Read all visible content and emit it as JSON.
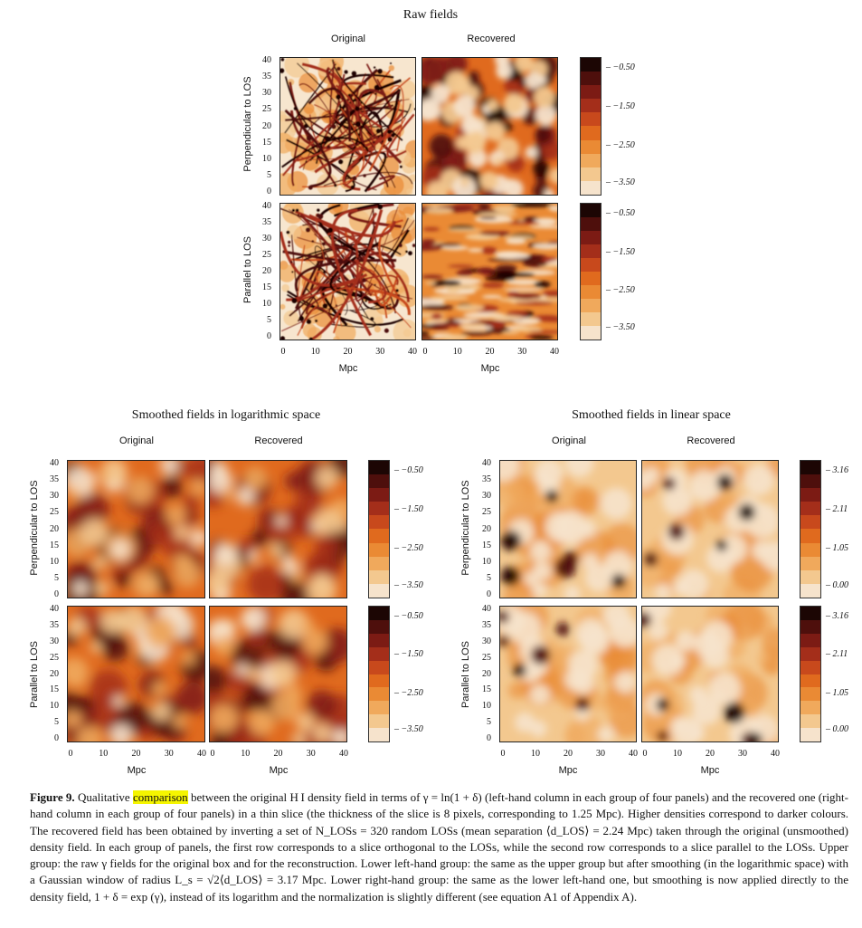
{
  "groups": {
    "raw": {
      "title": "Raw fields",
      "col_original": "Original",
      "col_recovered": "Recovered",
      "row1_label": "Perpendicular to LOS",
      "row2_label": "Parallel to LOS",
      "xlabel": "Mpc",
      "colorbar_ticks": [
        "−0.50",
        "−1.50",
        "−2.50",
        "−3.50"
      ]
    },
    "log": {
      "title": "Smoothed fields in logarithmic space",
      "col_original": "Original",
      "col_recovered": "Recovered",
      "row1_label": "Perpendicular to LOS",
      "row2_label": "Parallel to LOS",
      "xlabel": "Mpc",
      "colorbar_ticks": [
        "−0.50",
        "−1.50",
        "−2.50",
        "−3.50"
      ]
    },
    "lin": {
      "title": "Smoothed fields in linear space",
      "col_original": "Original",
      "col_recovered": "Recovered",
      "row1_label": "Perpendicular to LOS",
      "row2_label": "Parallel to LOS",
      "xlabel": "Mpc",
      "colorbar_ticks": [
        "3.16",
        "2.11",
        "1.05",
        "0.00"
      ]
    }
  },
  "ticks": [
    "0",
    "5",
    "10",
    "15",
    "20",
    "25",
    "30",
    "35",
    "40"
  ],
  "xticks": [
    "0",
    "10",
    "20",
    "30",
    "40"
  ],
  "colors": {
    "scale": [
      "#f6e3cc",
      "#f3c88f",
      "#f0a95c",
      "#ea8a34",
      "#e06a1e",
      "#c8491c",
      "#a42e1a",
      "#7c1b14",
      "#4e0f0c",
      "#1c0604"
    ],
    "highlight": "#f5f500"
  },
  "caption": {
    "label": "Figure 9.",
    "highlight_word": "comparison",
    "line1_pre": "Qualitative",
    "line1_post": "between the original H I density field in terms of γ = ln(1 + δ) (left-hand column in each group of four panels) and the recovered one (right-hand column in each group of four panels) in a thin slice (the thickness of the slice is 8 pixels, corresponding to 1.25 Mpc). Higher densities correspond to darker colours. The recovered field has been obtained by inverting a set of N_LOSs = 320 random LOSs (mean separation ⟨d_LOS⟩ = 2.24 Mpc) taken through the original (unsmoothed) density field. In each group of panels, the first row corresponds to a slice orthogonal to the LOSs, while the second row corresponds to a slice parallel to the LOSs. Upper group: the raw γ fields for the original box and for the reconstruction. Lower left-hand group: the same as the upper group but after smoothing (in the logarithmic space) with a Gaussian window of radius L_s = √2⟨d_LOS⟩ = 3.17 Mpc. Lower right-hand group: the same as the lower left-hand one, but smoothing is now applied directly to the density field, 1 + δ = exp (γ), instead of its logarithm and the normalization is slightly different (see equation A1 of Appendix A)."
  }
}
